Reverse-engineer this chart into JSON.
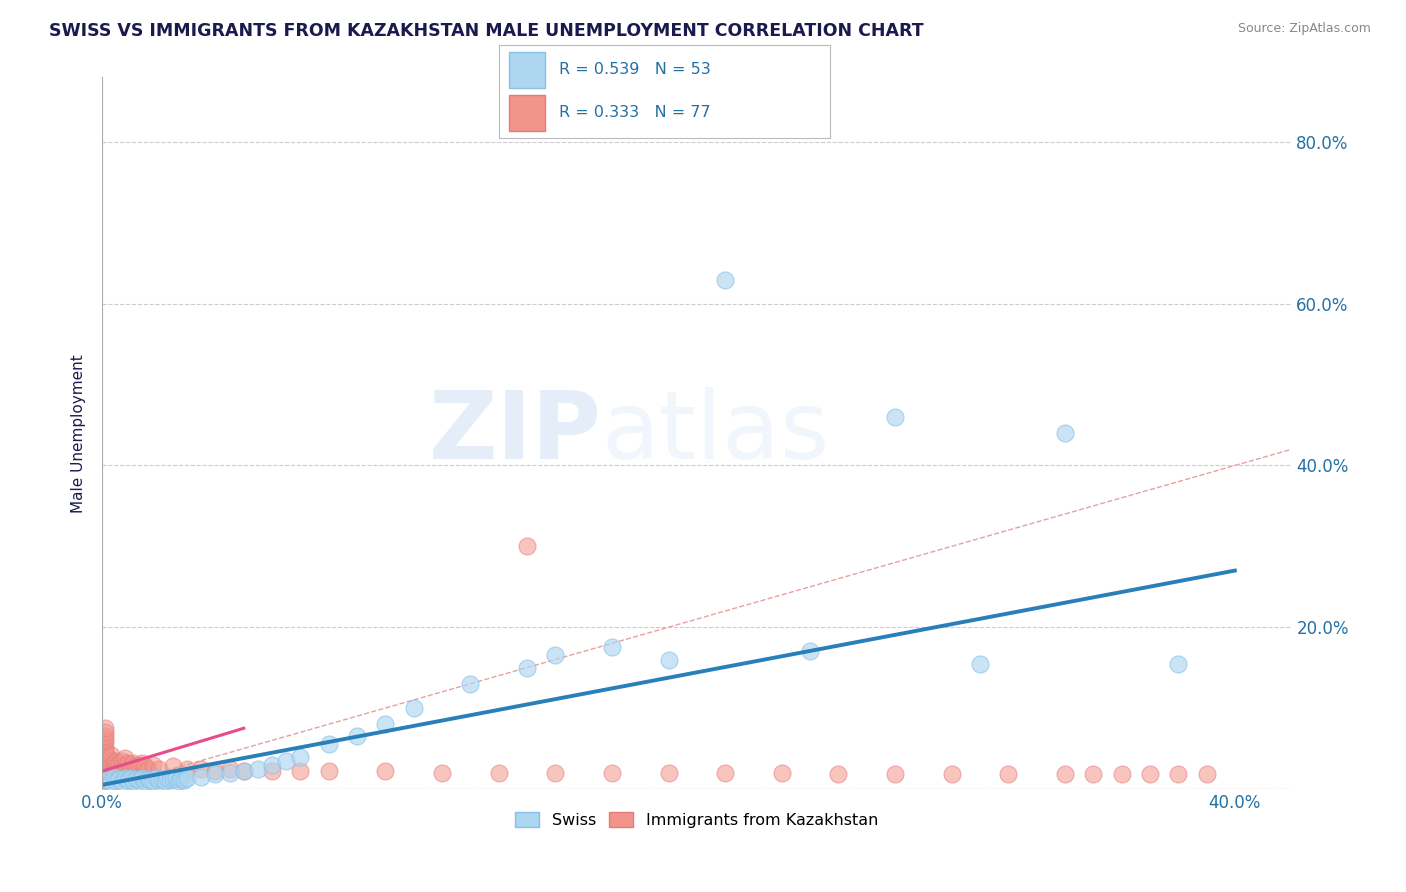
{
  "title": "SWISS VS IMMIGRANTS FROM KAZAKHSTAN MALE UNEMPLOYMENT CORRELATION CHART",
  "source": "Source: ZipAtlas.com",
  "ylabel": "Male Unemployment",
  "xlim": [
    0.0,
    0.42
  ],
  "ylim": [
    0.0,
    0.88
  ],
  "xticks": [
    0.0,
    0.1,
    0.2,
    0.3,
    0.4
  ],
  "xtick_labels": [
    "0.0%",
    "",
    "",
    "",
    "40.0%"
  ],
  "yticks": [
    0.0,
    0.2,
    0.4,
    0.6,
    0.8
  ],
  "ytick_labels": [
    "",
    "20.0%",
    "40.0%",
    "60.0%",
    "80.0%"
  ],
  "watermark_zip": "ZIP",
  "watermark_atlas": "atlas",
  "legend_blue_label": "R = 0.539   N = 53",
  "legend_pink_label": "R = 0.333   N = 77",
  "legend_bottom_swiss": "Swiss",
  "legend_bottom_kaz": "Immigrants from Kazakhstan",
  "swiss_color": "#aed6f1",
  "swiss_edge_color": "#85c1e9",
  "kaz_color": "#f1948a",
  "kaz_edge_color": "#e8797c",
  "swiss_line_color": "#2980b9",
  "kaz_line_color": "#e74c8b",
  "diagonal_color": "#e8a0a0",
  "grid_color": "#cccccc",
  "title_color": "#1a1a4e",
  "axis_label_color": "#2471a3",
  "tick_color": "#2471a3",
  "swiss_line_x": [
    0.0,
    0.4
  ],
  "swiss_line_y": [
    0.005,
    0.27
  ],
  "kaz_line_x": [
    0.0,
    0.05
  ],
  "kaz_line_y": [
    0.022,
    0.075
  ],
  "swiss_scatter_x": [
    0.001,
    0.002,
    0.003,
    0.004,
    0.005,
    0.006,
    0.007,
    0.008,
    0.009,
    0.01,
    0.011,
    0.012,
    0.013,
    0.014,
    0.015,
    0.016,
    0.017,
    0.018,
    0.019,
    0.02,
    0.021,
    0.022,
    0.023,
    0.024,
    0.025,
    0.026,
    0.027,
    0.028,
    0.029,
    0.03,
    0.035,
    0.04,
    0.045,
    0.05,
    0.055,
    0.06,
    0.065,
    0.07,
    0.08,
    0.09,
    0.1,
    0.11,
    0.13,
    0.15,
    0.16,
    0.18,
    0.2,
    0.22,
    0.25,
    0.28,
    0.31,
    0.34,
    0.38
  ],
  "swiss_scatter_y": [
    0.01,
    0.012,
    0.008,
    0.015,
    0.01,
    0.012,
    0.009,
    0.013,
    0.011,
    0.014,
    0.01,
    0.012,
    0.011,
    0.013,
    0.01,
    0.012,
    0.011,
    0.01,
    0.013,
    0.011,
    0.012,
    0.01,
    0.013,
    0.011,
    0.012,
    0.013,
    0.01,
    0.012,
    0.011,
    0.013,
    0.015,
    0.018,
    0.02,
    0.022,
    0.025,
    0.03,
    0.035,
    0.04,
    0.055,
    0.065,
    0.08,
    0.1,
    0.13,
    0.15,
    0.165,
    0.175,
    0.16,
    0.63,
    0.17,
    0.46,
    0.155,
    0.44,
    0.155
  ],
  "kaz_scatter_x": [
    0.001,
    0.001,
    0.001,
    0.001,
    0.001,
    0.001,
    0.001,
    0.001,
    0.001,
    0.001,
    0.001,
    0.001,
    0.001,
    0.001,
    0.001,
    0.001,
    0.001,
    0.001,
    0.001,
    0.001,
    0.002,
    0.002,
    0.002,
    0.002,
    0.002,
    0.003,
    0.003,
    0.003,
    0.003,
    0.004,
    0.004,
    0.005,
    0.005,
    0.006,
    0.006,
    0.007,
    0.007,
    0.008,
    0.008,
    0.009,
    0.01,
    0.011,
    0.012,
    0.013,
    0.014,
    0.015,
    0.016,
    0.018,
    0.02,
    0.025,
    0.03,
    0.035,
    0.04,
    0.045,
    0.05,
    0.06,
    0.07,
    0.08,
    0.1,
    0.12,
    0.14,
    0.15,
    0.16,
    0.18,
    0.2,
    0.22,
    0.24,
    0.26,
    0.28,
    0.3,
    0.32,
    0.34,
    0.35,
    0.36,
    0.37,
    0.38,
    0.39
  ],
  "kaz_scatter_y": [
    0.01,
    0.012,
    0.015,
    0.018,
    0.022,
    0.025,
    0.028,
    0.03,
    0.033,
    0.035,
    0.038,
    0.042,
    0.045,
    0.048,
    0.052,
    0.058,
    0.062,
    0.065,
    0.07,
    0.075,
    0.02,
    0.025,
    0.03,
    0.035,
    0.04,
    0.022,
    0.028,
    0.035,
    0.042,
    0.025,
    0.032,
    0.028,
    0.035,
    0.025,
    0.032,
    0.028,
    0.035,
    0.03,
    0.038,
    0.032,
    0.03,
    0.032,
    0.028,
    0.03,
    0.032,
    0.028,
    0.025,
    0.03,
    0.025,
    0.028,
    0.025,
    0.025,
    0.022,
    0.025,
    0.022,
    0.022,
    0.022,
    0.022,
    0.022,
    0.02,
    0.02,
    0.3,
    0.02,
    0.02,
    0.02,
    0.02,
    0.02,
    0.018,
    0.018,
    0.018,
    0.018,
    0.018,
    0.018,
    0.018,
    0.018,
    0.018,
    0.018
  ]
}
